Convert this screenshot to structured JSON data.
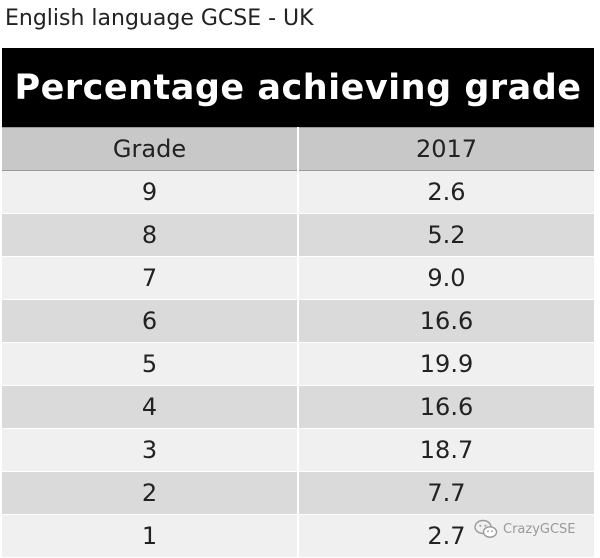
{
  "heading": "English language GCSE - UK",
  "chart_data": {
    "type": "table",
    "title": "Percentage achieving grade",
    "columns": [
      "Grade",
      "2017"
    ],
    "rows": [
      {
        "grade": "9",
        "value": "2.6"
      },
      {
        "grade": "8",
        "value": "5.2"
      },
      {
        "grade": "7",
        "value": "9.0"
      },
      {
        "grade": "6",
        "value": "16.6"
      },
      {
        "grade": "5",
        "value": "19.9"
      },
      {
        "grade": "4",
        "value": "16.6"
      },
      {
        "grade": "3",
        "value": "18.7"
      },
      {
        "grade": "2",
        "value": "7.7"
      },
      {
        "grade": "1",
        "value": "2.7"
      }
    ]
  },
  "watermark": {
    "icon": "wechat-icon",
    "text": "CrazyGCSE"
  }
}
